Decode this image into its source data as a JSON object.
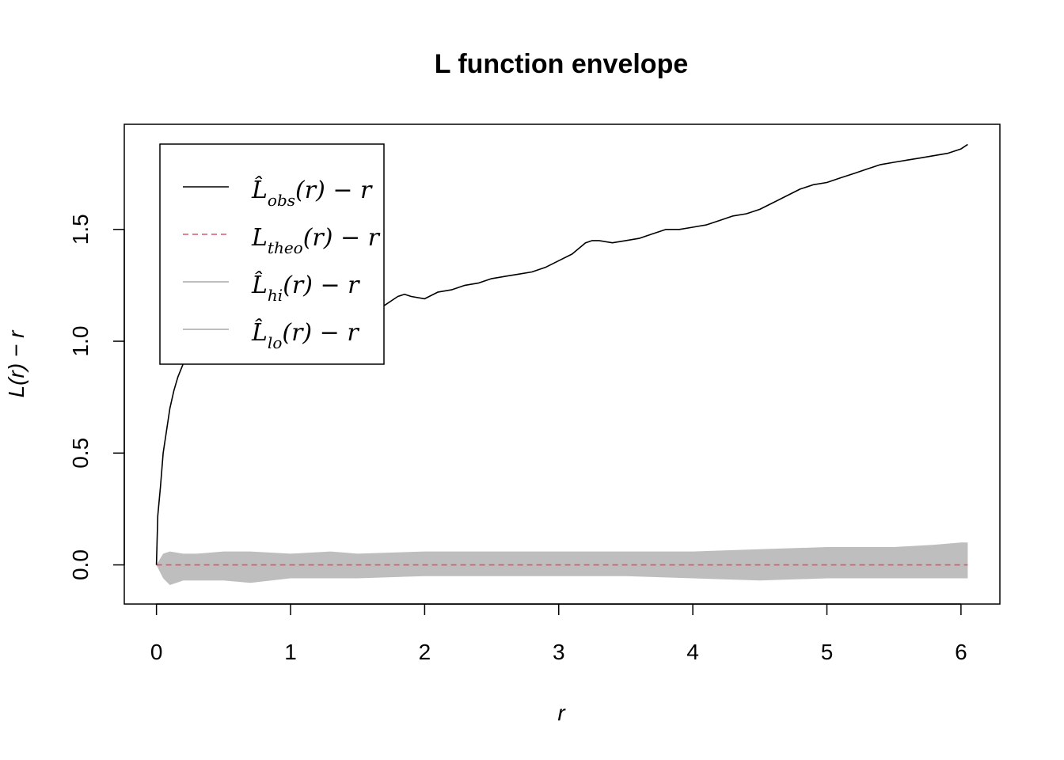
{
  "chart_data": {
    "type": "line",
    "title": "L function envelope",
    "xlabel": "r",
    "ylabel": "L(r) − r",
    "xlim": [
      -0.24,
      6.29
    ],
    "ylim": [
      -0.175,
      1.97
    ],
    "x_ticks": [
      "0",
      "1",
      "2",
      "3",
      "4",
      "5",
      "6"
    ],
    "y_ticks": [
      "0.0",
      "0.5",
      "1.0",
      "1.5"
    ],
    "grid": false,
    "legend_position": "top-left",
    "legend": [
      {
        "main": "L̂",
        "sub": "obs",
        "tail": "(r) − r",
        "color": "#000000",
        "style": "solid"
      },
      {
        "main": "L",
        "sub": "theo",
        "tail": "(r) − r",
        "color": "#DF536B",
        "style": "dashed"
      },
      {
        "main": "L̂",
        "sub": "hi",
        "tail": "(r) − r",
        "color": "#BEBEBE",
        "style": "solid"
      },
      {
        "main": "L̂",
        "sub": "lo",
        "tail": "(r) − r",
        "color": "#BEBEBE",
        "style": "solid"
      }
    ],
    "series": [
      {
        "key": "obs",
        "color": "#000000",
        "x": [
          0,
          0.01,
          0.03,
          0.05,
          0.08,
          0.1,
          0.13,
          0.16,
          0.2,
          0.25,
          0.3,
          0.35,
          0.4,
          0.45,
          0.5,
          0.55,
          0.6,
          0.65,
          0.7,
          0.75,
          0.8,
          0.85,
          0.9,
          0.95,
          1.0,
          1.05,
          1.1,
          1.15,
          1.2,
          1.3,
          1.4,
          1.5,
          1.6,
          1.7,
          1.8,
          1.85,
          1.9,
          2.0,
          2.1,
          2.2,
          2.3,
          2.4,
          2.5,
          2.6,
          2.7,
          2.8,
          2.9,
          3.0,
          3.1,
          3.2,
          3.25,
          3.3,
          3.4,
          3.5,
          3.6,
          3.7,
          3.8,
          3.9,
          4.0,
          4.1,
          4.2,
          4.3,
          4.4,
          4.5,
          4.6,
          4.7,
          4.8,
          4.9,
          5.0,
          5.1,
          5.2,
          5.3,
          5.4,
          5.5,
          5.6,
          5.7,
          5.8,
          5.9,
          6.0,
          6.05
        ],
        "y": [
          0,
          0.22,
          0.35,
          0.5,
          0.62,
          0.7,
          0.78,
          0.84,
          0.9,
          0.94,
          0.96,
          0.97,
          0.98,
          0.99,
          1.02,
          1.05,
          1.07,
          1.08,
          1.08,
          1.09,
          1.08,
          1.09,
          1.09,
          1.1,
          1.09,
          1.09,
          1.1,
          1.1,
          1.11,
          1.13,
          1.13,
          1.14,
          1.14,
          1.16,
          1.2,
          1.21,
          1.2,
          1.19,
          1.22,
          1.23,
          1.25,
          1.26,
          1.28,
          1.29,
          1.3,
          1.31,
          1.33,
          1.36,
          1.39,
          1.44,
          1.45,
          1.45,
          1.44,
          1.45,
          1.46,
          1.48,
          1.5,
          1.5,
          1.51,
          1.52,
          1.54,
          1.56,
          1.57,
          1.59,
          1.62,
          1.65,
          1.68,
          1.7,
          1.71,
          1.73,
          1.75,
          1.77,
          1.79,
          1.8,
          1.81,
          1.82,
          1.83,
          1.84,
          1.86,
          1.88
        ]
      },
      {
        "key": "theo",
        "color": "#DF536B",
        "x": [
          0,
          6.05
        ],
        "y": [
          0,
          0
        ]
      },
      {
        "key": "hi",
        "color": "#BEBEBE",
        "x": [
          0,
          0.05,
          0.1,
          0.2,
          0.3,
          0.5,
          0.7,
          1.0,
          1.3,
          1.5,
          2.0,
          2.5,
          3.0,
          3.5,
          4.0,
          4.5,
          5.0,
          5.5,
          5.8,
          6.0,
          6.05
        ],
        "y": [
          0,
          0.05,
          0.06,
          0.05,
          0.05,
          0.06,
          0.06,
          0.05,
          0.06,
          0.05,
          0.06,
          0.06,
          0.06,
          0.06,
          0.06,
          0.07,
          0.08,
          0.08,
          0.09,
          0.1,
          0.1
        ]
      },
      {
        "key": "lo",
        "color": "#BEBEBE",
        "x": [
          0,
          0.05,
          0.1,
          0.2,
          0.3,
          0.5,
          0.7,
          1.0,
          1.3,
          1.5,
          2.0,
          2.5,
          3.0,
          3.5,
          4.0,
          4.5,
          5.0,
          5.5,
          5.8,
          6.0,
          6.05
        ],
        "y": [
          0,
          -0.06,
          -0.09,
          -0.07,
          -0.07,
          -0.07,
          -0.08,
          -0.06,
          -0.06,
          -0.06,
          -0.05,
          -0.05,
          -0.05,
          -0.05,
          -0.06,
          -0.07,
          -0.06,
          -0.06,
          -0.06,
          -0.06,
          -0.06
        ]
      }
    ]
  }
}
